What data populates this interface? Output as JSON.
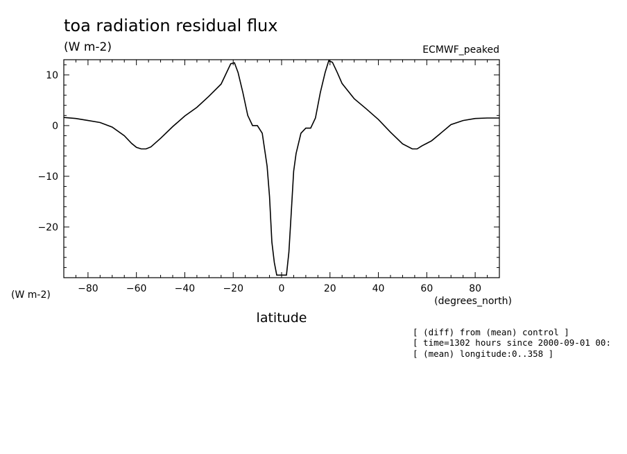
{
  "header": {
    "title": "toa radiation residual flux",
    "units": "(W m-2)",
    "dataset": "ECMWF_peaked",
    "y_units_left": "(W m-2)"
  },
  "notes": [
    "[ (diff) from (mean) control ]",
    "[ time=1302 hours since 2000-09-01 00:",
    "[ (mean) longitude:0..358 ]"
  ],
  "chart_data": {
    "type": "line",
    "title": "toa radiation residual flux",
    "xlabel": "latitude",
    "xunits": "(degrees_north)",
    "ylabel": "(W m-2)",
    "xlim": [
      -90,
      90
    ],
    "ylim": [
      -30,
      13
    ],
    "xticks": [
      -80,
      -60,
      -40,
      -20,
      0,
      20,
      40,
      60,
      80
    ],
    "yticks": [
      10,
      0,
      -10,
      -20
    ],
    "xtick_labels": [
      "-80",
      "-60",
      "-40",
      "-20",
      "0",
      "20",
      "40",
      "60",
      "80"
    ],
    "ytick_labels": [
      "10",
      "0",
      "-10",
      "-20"
    ],
    "grid": false,
    "series": [
      {
        "x": [
          -90,
          -85,
          -80,
          -75,
          -70,
          -65,
          -62,
          -60,
          -58,
          -56,
          -54,
          -50,
          -45,
          -40,
          -35,
          -30,
          -25,
          -23,
          -21,
          -19.5,
          -18,
          -16,
          -14,
          -12,
          -10,
          -8,
          -6,
          -5,
          -4,
          -3,
          -2,
          -1,
          0,
          1,
          2,
          3,
          4,
          5,
          6,
          8,
          10,
          12,
          14,
          16,
          18,
          19.5,
          21,
          23,
          25,
          30,
          35,
          40,
          45,
          50,
          54,
          56,
          58,
          60,
          62,
          65,
          70,
          75,
          80,
          85,
          90
        ],
        "y": [
          1.6,
          1.4,
          1.0,
          0.6,
          -0.3,
          -2.0,
          -3.5,
          -4.3,
          -4.6,
          -4.6,
          -4.2,
          -2.5,
          -0.2,
          1.9,
          3.6,
          5.8,
          8.2,
          10.2,
          12.2,
          12.4,
          10.5,
          6.5,
          2.0,
          0.0,
          0.0,
          -1.5,
          -8.0,
          -14.0,
          -23.0,
          -27.0,
          -29.5,
          -29.5,
          -29.5,
          -29.5,
          -29.5,
          -25.0,
          -17.0,
          -9.0,
          -5.5,
          -1.5,
          -0.5,
          -0.5,
          1.5,
          6.5,
          10.5,
          12.8,
          12.5,
          10.5,
          8.3,
          5.3,
          3.3,
          1.2,
          -1.3,
          -3.6,
          -4.6,
          -4.6,
          -4.0,
          -3.5,
          -3.0,
          -1.8,
          0.2,
          1.0,
          1.4,
          1.5,
          1.5
        ]
      }
    ]
  }
}
